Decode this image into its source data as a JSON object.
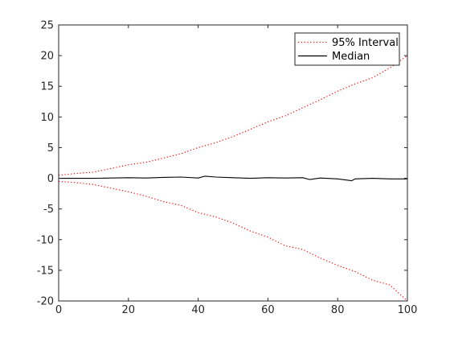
{
  "chart_data": {
    "type": "line",
    "title": "",
    "xlabel": "",
    "ylabel": "",
    "xlim": [
      0,
      100
    ],
    "ylim": [
      -20,
      25
    ],
    "x_ticks": [
      0,
      20,
      40,
      60,
      80,
      100
    ],
    "y_ticks": [
      -20,
      -15,
      -10,
      -5,
      0,
      5,
      10,
      15,
      20,
      25
    ],
    "x_tick_labels": [
      "0",
      "20",
      "40",
      "60",
      "80",
      "100"
    ],
    "y_tick_labels": [
      "-20",
      "-15",
      "-10",
      "-5",
      "0",
      "5",
      "10",
      "15",
      "20",
      "25"
    ],
    "grid": false,
    "legend_position": "top-right",
    "series": [
      {
        "name": "95% Interval",
        "color": "#ff0000",
        "style": "dotted",
        "x": [
          0,
          5,
          10,
          15,
          20,
          25,
          30,
          35,
          40,
          45,
          50,
          55,
          60,
          65,
          70,
          75,
          80,
          85,
          90,
          95,
          100
        ],
        "values": [
          0.5,
          0.8,
          1.0,
          1.6,
          2.2,
          2.6,
          3.3,
          4.0,
          5.0,
          5.8,
          6.8,
          8.0,
          9.2,
          10.2,
          11.5,
          12.8,
          14.2,
          15.4,
          16.4,
          18.0,
          20.0
        ]
      },
      {
        "name": "95% Interval",
        "legend": false,
        "color": "#ff0000",
        "style": "dotted",
        "x": [
          0,
          5,
          10,
          15,
          20,
          25,
          30,
          35,
          40,
          45,
          50,
          55,
          60,
          65,
          70,
          75,
          80,
          85,
          90,
          95,
          100
        ],
        "values": [
          -0.5,
          -0.7,
          -1.0,
          -1.6,
          -2.2,
          -2.9,
          -3.8,
          -4.4,
          -5.6,
          -6.3,
          -7.3,
          -8.6,
          -9.6,
          -11.0,
          -11.6,
          -13.0,
          -14.2,
          -15.2,
          -16.6,
          -17.4,
          -20.0
        ]
      },
      {
        "name": "Median",
        "color": "#000000",
        "style": "solid",
        "x": [
          0,
          5,
          10,
          15,
          20,
          25,
          30,
          35,
          40,
          42,
          45,
          50,
          55,
          60,
          65,
          70,
          72,
          75,
          80,
          84,
          85,
          90,
          95,
          100
        ],
        "values": [
          0.0,
          0.0,
          0.0,
          0.05,
          0.1,
          0.05,
          0.15,
          0.2,
          0.05,
          0.35,
          0.2,
          0.1,
          0.0,
          0.1,
          0.05,
          0.1,
          -0.2,
          0.05,
          -0.1,
          -0.4,
          -0.1,
          0.0,
          -0.1,
          -0.1
        ]
      }
    ]
  }
}
